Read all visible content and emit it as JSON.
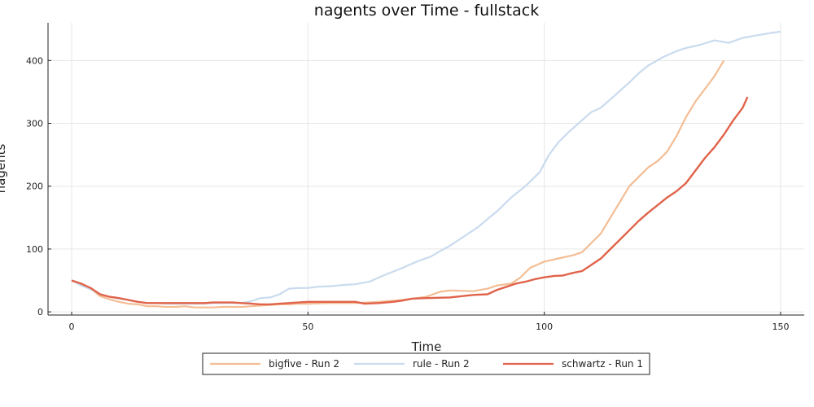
{
  "chart_data": {
    "type": "line",
    "title": "nagents over Time - fullstack",
    "xlabel": "Time",
    "ylabel": "nagents",
    "xlim": [
      -5,
      155
    ],
    "ylim": [
      -5,
      460
    ],
    "xticks": [
      0,
      50,
      100,
      150
    ],
    "yticks": [
      0,
      100,
      200,
      300,
      400
    ],
    "grid": true,
    "legend_position": "bottom",
    "series": [
      {
        "name": "bigfive - Run 2",
        "color": "#f4bd94",
        "x": [
          0,
          2,
          4,
          6,
          8,
          10,
          12,
          14,
          16,
          18,
          20,
          22,
          24,
          26,
          28,
          30,
          32,
          34,
          36,
          38,
          40,
          42,
          44,
          46,
          48,
          50,
          55,
          60,
          65,
          70,
          75,
          78,
          80,
          85,
          88,
          90,
          93,
          95,
          97,
          100,
          103,
          106,
          108,
          110,
          112,
          114,
          116,
          118,
          120,
          122,
          124,
          126,
          128,
          130,
          132,
          134,
          136,
          138
        ],
        "y": [
          50,
          42,
          37,
          25,
          20,
          16,
          13,
          12,
          9,
          9,
          8,
          8,
          9,
          7,
          7,
          7,
          8,
          8,
          8,
          9,
          10,
          11,
          12,
          12,
          13,
          13,
          14,
          14,
          16,
          19,
          24,
          32,
          34,
          33,
          37,
          42,
          45,
          55,
          70,
          80,
          85,
          90,
          95,
          110,
          125,
          150,
          175,
          200,
          215,
          230,
          240,
          255,
          280,
          310,
          335,
          355,
          375,
          400
        ]
      },
      {
        "name": "rule - Run 2",
        "color": "#c9dbee",
        "x": [
          0,
          2,
          4,
          6,
          8,
          10,
          12,
          14,
          16,
          18,
          20,
          22,
          24,
          26,
          28,
          30,
          32,
          34,
          36,
          38,
          40,
          42,
          44,
          46,
          48,
          50,
          52,
          55,
          58,
          60,
          63,
          66,
          70,
          73,
          76,
          78,
          80,
          83,
          86,
          88,
          90,
          93,
          96,
          99,
          101,
          103,
          105,
          108,
          110,
          112,
          115,
          118,
          120,
          122,
          125,
          128,
          130,
          133,
          136,
          139,
          142,
          145,
          148,
          150
        ],
        "y": [
          50,
          42,
          36,
          28,
          24,
          21,
          19,
          16,
          14,
          14,
          13,
          13,
          13,
          13,
          13,
          14,
          14,
          14,
          14,
          17,
          22,
          23,
          28,
          37,
          38,
          38,
          40,
          41,
          43,
          44,
          48,
          58,
          70,
          80,
          88,
          97,
          105,
          120,
          135,
          148,
          160,
          182,
          200,
          222,
          250,
          270,
          285,
          305,
          318,
          325,
          345,
          365,
          380,
          392,
          405,
          415,
          420,
          425,
          432,
          428,
          436,
          440,
          444,
          446
        ]
      },
      {
        "name": "schwartz - Run 1",
        "color": "#e0634a",
        "x": [
          0,
          2,
          4,
          6,
          8,
          10,
          12,
          14,
          16,
          18,
          20,
          22,
          24,
          26,
          28,
          30,
          32,
          34,
          36,
          38,
          40,
          42,
          44,
          46,
          48,
          50,
          55,
          60,
          62,
          65,
          68,
          70,
          72,
          75,
          80,
          85,
          88,
          90,
          92,
          94,
          96,
          98,
          100,
          102,
          104,
          106,
          108,
          110,
          112,
          114,
          116,
          118,
          120,
          122,
          124,
          126,
          128,
          130,
          132,
          134,
          136,
          138,
          140,
          142,
          143
        ],
        "y": [
          50,
          45,
          38,
          28,
          24,
          22,
          19,
          16,
          14,
          14,
          14,
          14,
          14,
          14,
          14,
          15,
          15,
          15,
          14,
          13,
          12,
          12,
          13,
          14,
          15,
          16,
          16,
          16,
          13,
          14,
          16,
          18,
          21,
          22,
          23,
          27,
          28,
          35,
          40,
          45,
          48,
          52,
          55,
          57,
          58,
          62,
          65,
          75,
          85,
          100,
          115,
          130,
          145,
          158,
          170,
          182,
          192,
          205,
          225,
          245,
          262,
          282,
          305,
          325,
          342
        ]
      }
    ]
  }
}
